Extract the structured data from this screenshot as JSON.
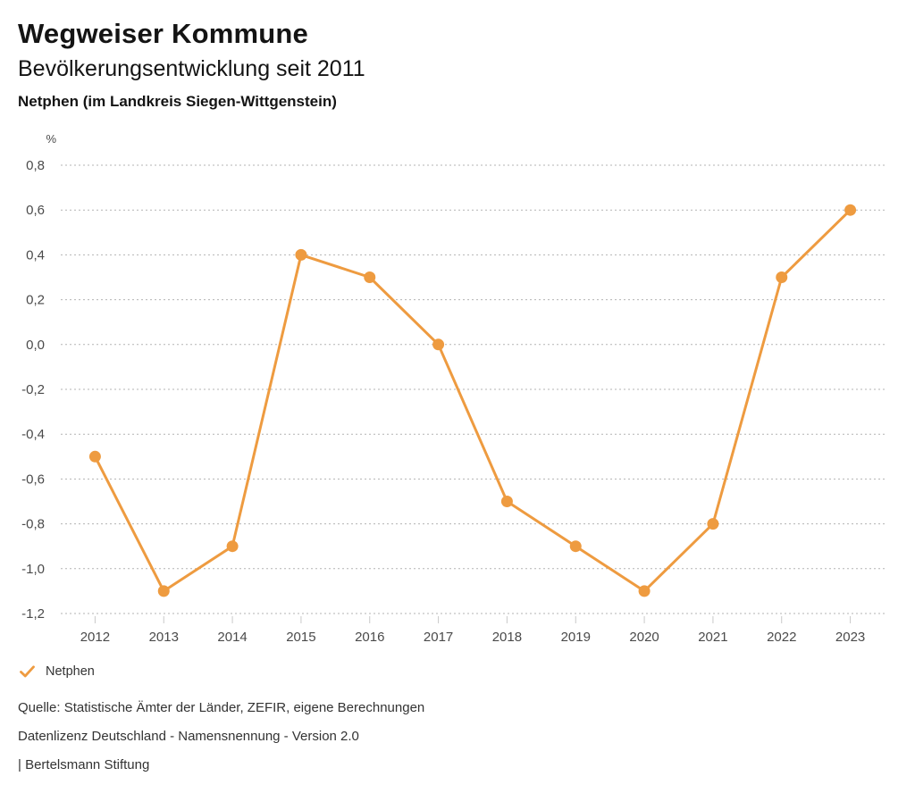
{
  "header": {
    "title": "Wegweiser Kommune",
    "subtitle": "Bevölkerungsentwicklung seit 2011",
    "region": "Netphen (im Landkreis Siegen-Wittgenstein)"
  },
  "chart_data": {
    "type": "line",
    "categories": [
      "2012",
      "2013",
      "2014",
      "2015",
      "2016",
      "2017",
      "2018",
      "2019",
      "2020",
      "2021",
      "2022",
      "2023"
    ],
    "series": [
      {
        "name": "Netphen",
        "values": [
          -0.5,
          -1.1,
          -0.9,
          0.4,
          0.3,
          0.0,
          -0.7,
          -0.9,
          -1.1,
          -0.8,
          0.3,
          0.6
        ]
      }
    ],
    "title": "Bevölkerungsentwicklung seit 2011",
    "xlabel": "",
    "ylabel": "%",
    "ylim": [
      -1.2,
      0.8
    ],
    "ytick_step": 0.2,
    "grid": "horizontal-dotted",
    "legend_position": "bottom-left",
    "line_color": "#ee9b40",
    "decimal_separator": ","
  },
  "legend": {
    "items": [
      {
        "label": "Netphen",
        "color": "#ee9b40",
        "marker": "check-icon"
      }
    ]
  },
  "footer": {
    "source": "Quelle: Statistische Ämter der Länder, ZEFIR, eigene Berechnungen",
    "license": "Datenlizenz Deutschland - Namensnennung - Version 2.0",
    "attribution": "| Bertelsmann Stiftung"
  }
}
